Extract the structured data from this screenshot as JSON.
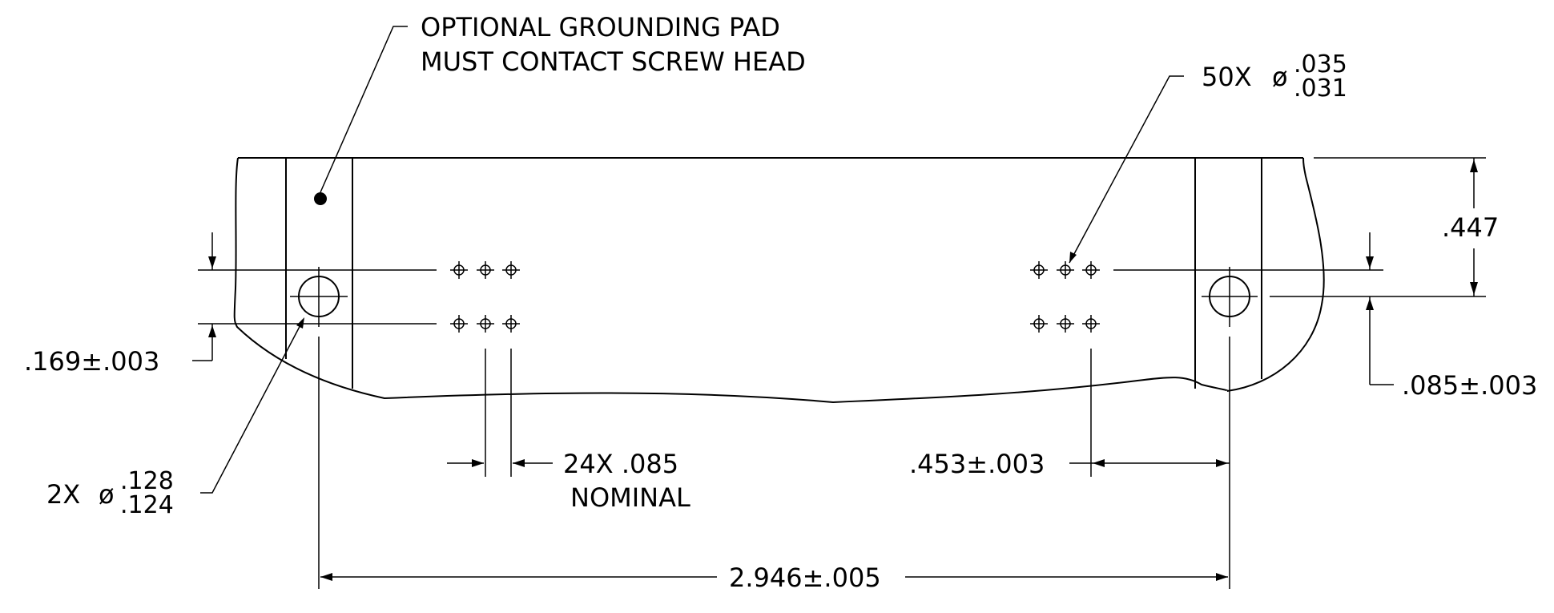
{
  "notes": {
    "grounding_line1": "OPTIONAL GROUNDING PAD",
    "grounding_line2": "MUST CONTACT SCREW HEAD"
  },
  "callouts": {
    "pin_count": "50X",
    "pin_dia_symbol": "ø",
    "pin_dia_max": ".035",
    "pin_dia_min": ".031",
    "screw_count": "2X",
    "screw_dia_symbol": "ø",
    "screw_dia_max": ".128",
    "screw_dia_min": ".124"
  },
  "dimensions": {
    "height": ".447",
    "left_offset": ".169±.003",
    "right_offset": ".085±.003",
    "pitch": "24X .085",
    "pitch_note": "NOMINAL",
    "right_spacing": ".453±.003",
    "overall": "2.946±.005"
  }
}
